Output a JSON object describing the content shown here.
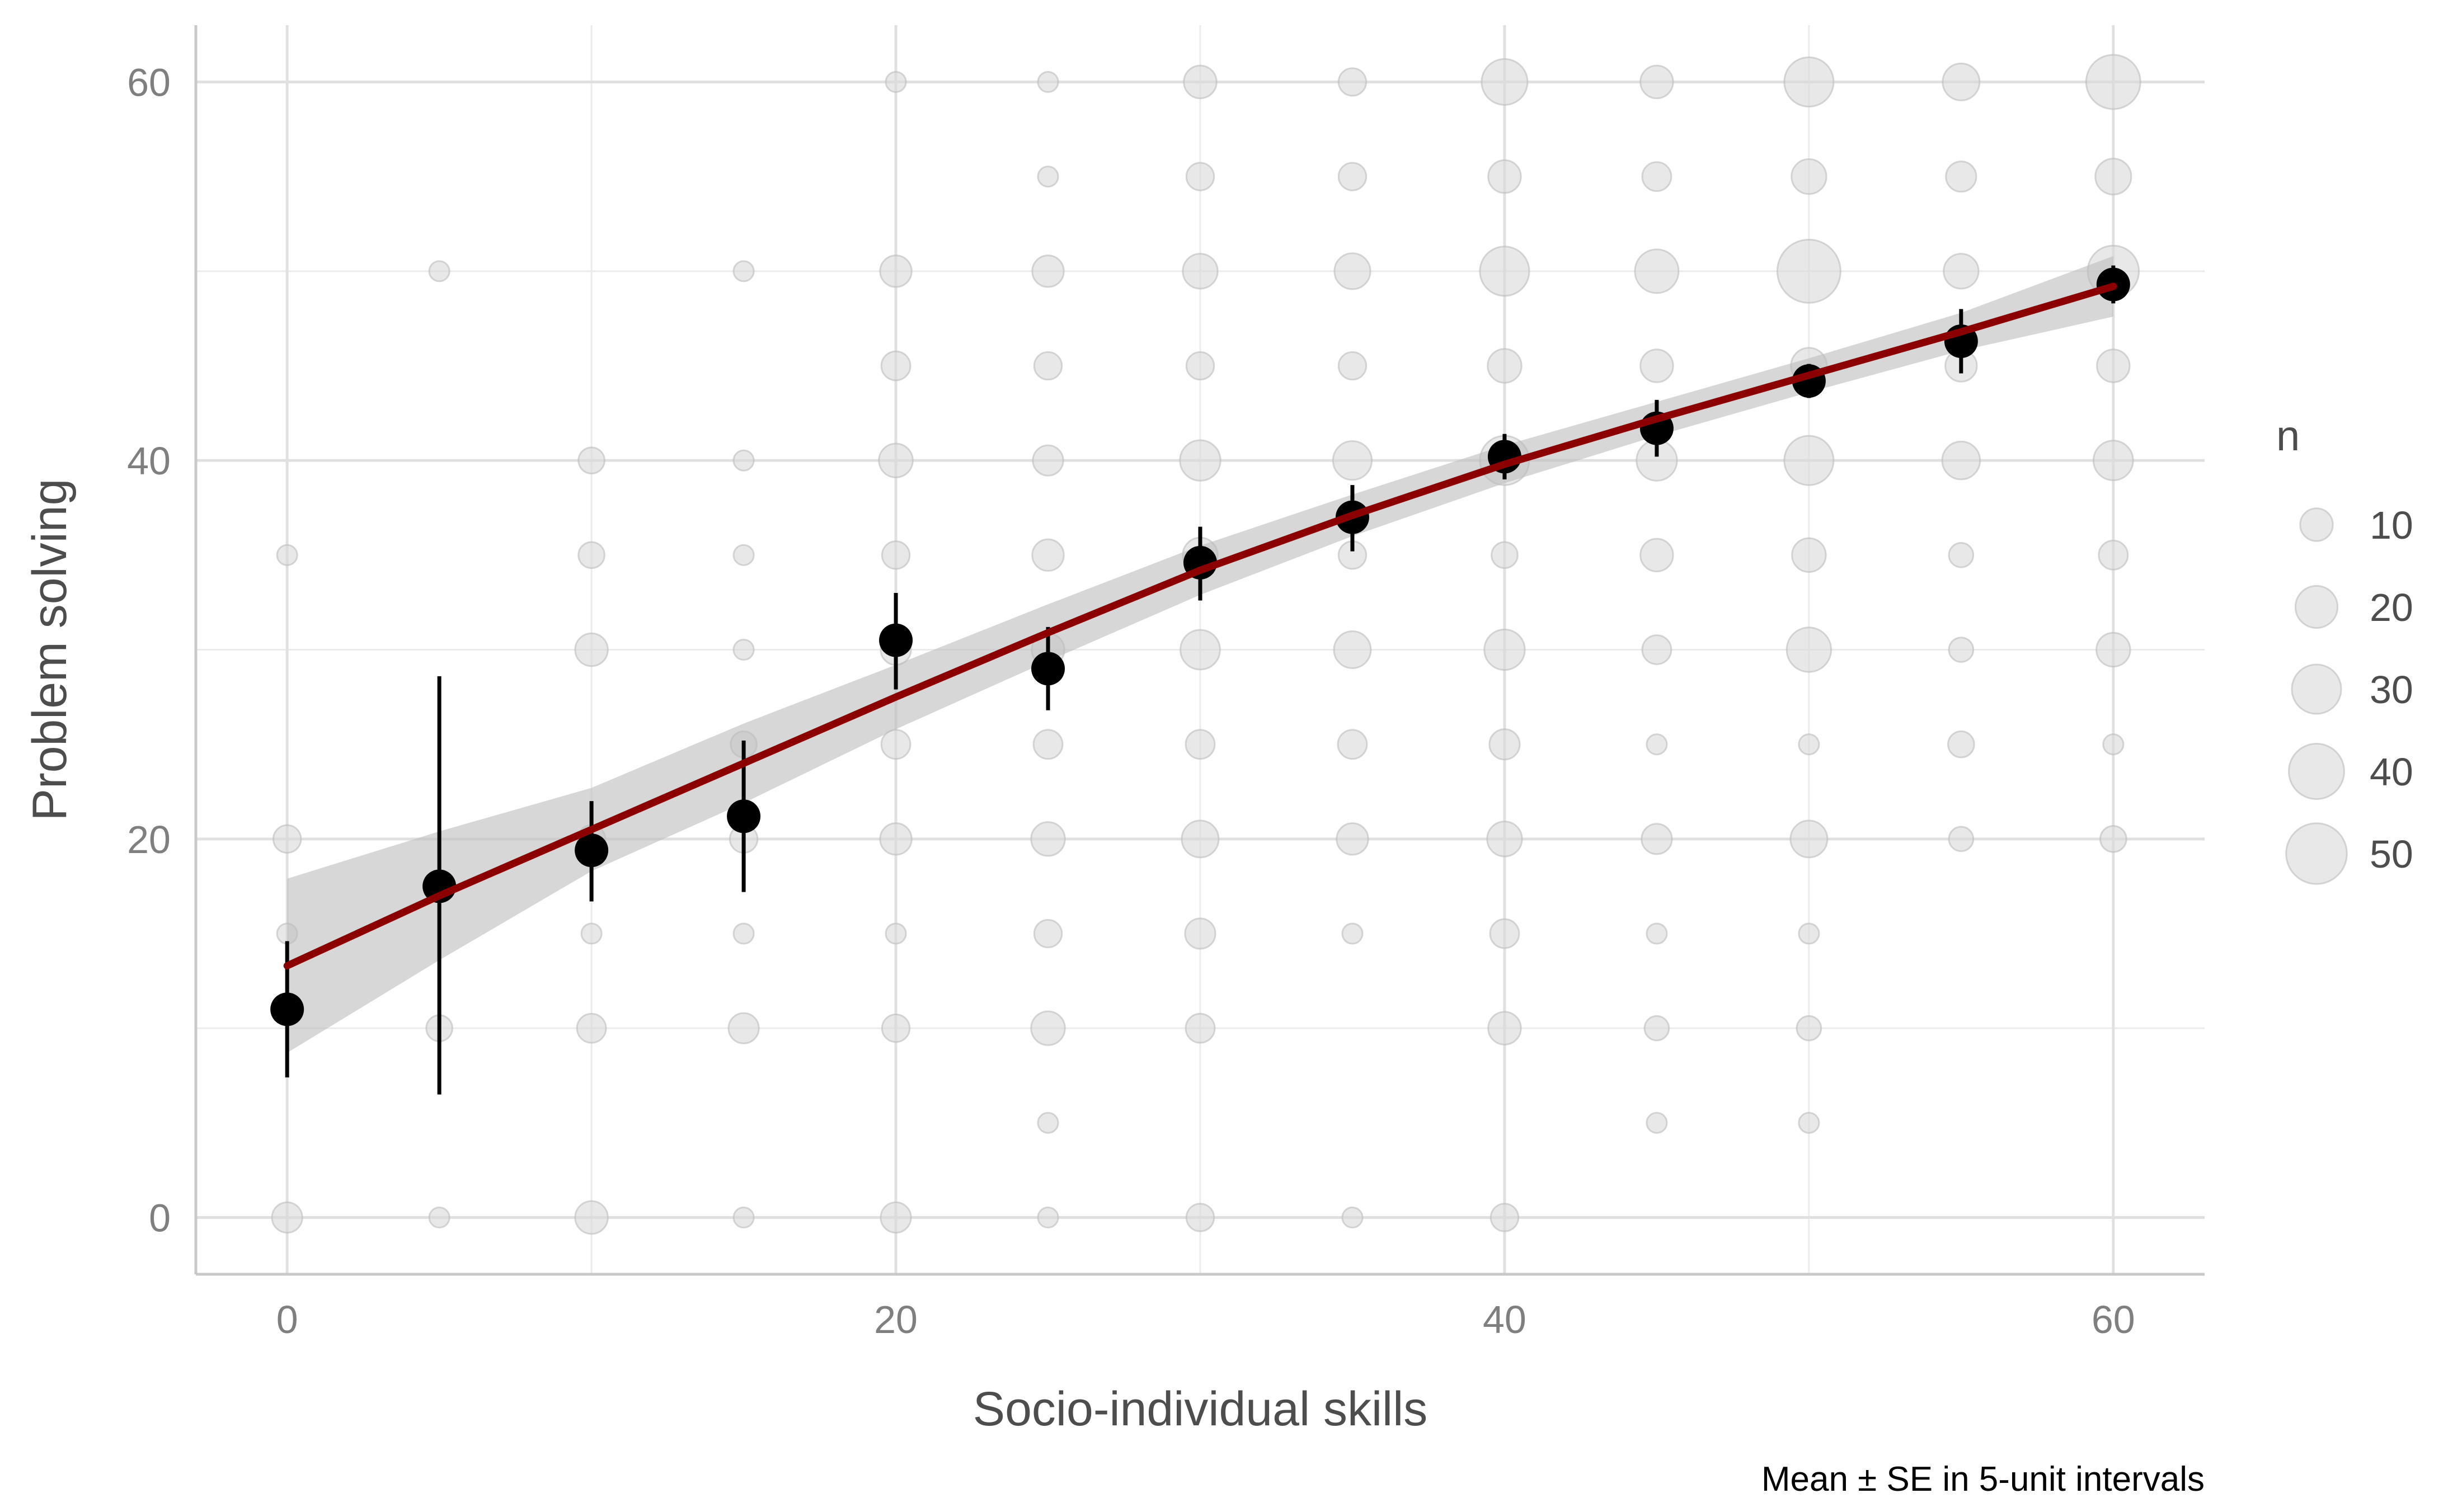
{
  "chart_data": {
    "type": "scatter",
    "xlabel": "Socio-individual skills",
    "ylabel": "Problem solving",
    "caption": "Mean ± SE in 5-unit intervals",
    "xlim": [
      -3,
      63
    ],
    "ylim": [
      -3,
      63
    ],
    "x_ticks": [
      "0",
      "20",
      "40",
      "60"
    ],
    "y_ticks": [
      "0",
      "20",
      "40",
      "60"
    ],
    "grid": true,
    "legend": {
      "title": "n",
      "placement": "right",
      "entries": [
        {
          "label": "10",
          "n": 10
        },
        {
          "label": "20",
          "n": 20
        },
        {
          "label": "30",
          "n": 30
        },
        {
          "label": "40",
          "n": 40
        },
        {
          "label": "50",
          "n": 50
        }
      ]
    },
    "colors": {
      "count_points": "#d9d9d9",
      "count_point_stroke": "#bdbdbd",
      "mean_points": "#000000",
      "fit_line": "#8b0000",
      "confidence_band": "#bdbdbd"
    },
    "count_points": [
      {
        "x": 0,
        "y": 0,
        "n": 8
      },
      {
        "x": 0,
        "y": 15,
        "n": 2
      },
      {
        "x": 0,
        "y": 20,
        "n": 6
      },
      {
        "x": 0,
        "y": 35,
        "n": 2
      },
      {
        "x": 5,
        "y": 0,
        "n": 2
      },
      {
        "x": 5,
        "y": 10,
        "n": 5
      },
      {
        "x": 5,
        "y": 50,
        "n": 2
      },
      {
        "x": 10,
        "y": 0,
        "n": 10
      },
      {
        "x": 10,
        "y": 10,
        "n": 7
      },
      {
        "x": 10,
        "y": 15,
        "n": 2
      },
      {
        "x": 10,
        "y": 20,
        "n": 6
      },
      {
        "x": 10,
        "y": 30,
        "n": 10
      },
      {
        "x": 10,
        "y": 35,
        "n": 5
      },
      {
        "x": 10,
        "y": 40,
        "n": 5
      },
      {
        "x": 15,
        "y": 0,
        "n": 2
      },
      {
        "x": 15,
        "y": 10,
        "n": 8
      },
      {
        "x": 15,
        "y": 15,
        "n": 2
      },
      {
        "x": 15,
        "y": 20,
        "n": 6
      },
      {
        "x": 15,
        "y": 25,
        "n": 5
      },
      {
        "x": 15,
        "y": 30,
        "n": 2
      },
      {
        "x": 15,
        "y": 35,
        "n": 2
      },
      {
        "x": 15,
        "y": 40,
        "n": 2
      },
      {
        "x": 15,
        "y": 50,
        "n": 2
      },
      {
        "x": 20,
        "y": 0,
        "n": 8
      },
      {
        "x": 20,
        "y": 10,
        "n": 6
      },
      {
        "x": 20,
        "y": 15,
        "n": 2
      },
      {
        "x": 20,
        "y": 20,
        "n": 9
      },
      {
        "x": 20,
        "y": 25,
        "n": 7
      },
      {
        "x": 20,
        "y": 30,
        "n": 8
      },
      {
        "x": 20,
        "y": 35,
        "n": 6
      },
      {
        "x": 20,
        "y": 40,
        "n": 11
      },
      {
        "x": 20,
        "y": 45,
        "n": 7
      },
      {
        "x": 20,
        "y": 50,
        "n": 9
      },
      {
        "x": 20,
        "y": 60,
        "n": 2
      },
      {
        "x": 25,
        "y": 0,
        "n": 2
      },
      {
        "x": 25,
        "y": 5,
        "n": 2
      },
      {
        "x": 25,
        "y": 10,
        "n": 11
      },
      {
        "x": 25,
        "y": 15,
        "n": 6
      },
      {
        "x": 25,
        "y": 20,
        "n": 11
      },
      {
        "x": 25,
        "y": 25,
        "n": 7
      },
      {
        "x": 25,
        "y": 30,
        "n": 10
      },
      {
        "x": 25,
        "y": 35,
        "n": 9
      },
      {
        "x": 25,
        "y": 40,
        "n": 8
      },
      {
        "x": 25,
        "y": 45,
        "n": 6
      },
      {
        "x": 25,
        "y": 50,
        "n": 9
      },
      {
        "x": 25,
        "y": 55,
        "n": 2
      },
      {
        "x": 25,
        "y": 60,
        "n": 2
      },
      {
        "x": 30,
        "y": 0,
        "n": 6
      },
      {
        "x": 30,
        "y": 10,
        "n": 7
      },
      {
        "x": 30,
        "y": 15,
        "n": 8
      },
      {
        "x": 30,
        "y": 20,
        "n": 14
      },
      {
        "x": 30,
        "y": 25,
        "n": 7
      },
      {
        "x": 30,
        "y": 30,
        "n": 17
      },
      {
        "x": 30,
        "y": 35,
        "n": 12
      },
      {
        "x": 30,
        "y": 40,
        "n": 18
      },
      {
        "x": 30,
        "y": 45,
        "n": 6
      },
      {
        "x": 30,
        "y": 50,
        "n": 12
      },
      {
        "x": 30,
        "y": 55,
        "n": 6
      },
      {
        "x": 30,
        "y": 60,
        "n": 10
      },
      {
        "x": 35,
        "y": 0,
        "n": 2
      },
      {
        "x": 35,
        "y": 15,
        "n": 2
      },
      {
        "x": 35,
        "y": 20,
        "n": 9
      },
      {
        "x": 35,
        "y": 25,
        "n": 7
      },
      {
        "x": 35,
        "y": 30,
        "n": 14
      },
      {
        "x": 35,
        "y": 35,
        "n": 6
      },
      {
        "x": 35,
        "y": 40,
        "n": 16
      },
      {
        "x": 35,
        "y": 45,
        "n": 6
      },
      {
        "x": 35,
        "y": 50,
        "n": 13
      },
      {
        "x": 35,
        "y": 55,
        "n": 6
      },
      {
        "x": 35,
        "y": 60,
        "n": 6
      },
      {
        "x": 40,
        "y": 0,
        "n": 6
      },
      {
        "x": 40,
        "y": 10,
        "n": 10
      },
      {
        "x": 40,
        "y": 15,
        "n": 7
      },
      {
        "x": 40,
        "y": 20,
        "n": 12
      },
      {
        "x": 40,
        "y": 25,
        "n": 8
      },
      {
        "x": 40,
        "y": 30,
        "n": 18
      },
      {
        "x": 40,
        "y": 35,
        "n": 5
      },
      {
        "x": 40,
        "y": 40,
        "n": 30
      },
      {
        "x": 40,
        "y": 45,
        "n": 11
      },
      {
        "x": 40,
        "y": 50,
        "n": 30
      },
      {
        "x": 40,
        "y": 55,
        "n": 10
      },
      {
        "x": 40,
        "y": 60,
        "n": 25
      },
      {
        "x": 45,
        "y": 5,
        "n": 2
      },
      {
        "x": 45,
        "y": 10,
        "n": 4
      },
      {
        "x": 45,
        "y": 15,
        "n": 2
      },
      {
        "x": 45,
        "y": 20,
        "n": 8
      },
      {
        "x": 45,
        "y": 25,
        "n": 2
      },
      {
        "x": 45,
        "y": 30,
        "n": 7
      },
      {
        "x": 45,
        "y": 35,
        "n": 10
      },
      {
        "x": 45,
        "y": 40,
        "n": 18
      },
      {
        "x": 45,
        "y": 45,
        "n": 10
      },
      {
        "x": 45,
        "y": 50,
        "n": 22
      },
      {
        "x": 45,
        "y": 55,
        "n": 7
      },
      {
        "x": 45,
        "y": 60,
        "n": 10
      },
      {
        "x": 50,
        "y": 5,
        "n": 2
      },
      {
        "x": 50,
        "y": 10,
        "n": 4
      },
      {
        "x": 50,
        "y": 15,
        "n": 2
      },
      {
        "x": 50,
        "y": 20,
        "n": 14
      },
      {
        "x": 50,
        "y": 25,
        "n": 2
      },
      {
        "x": 50,
        "y": 30,
        "n": 23
      },
      {
        "x": 50,
        "y": 35,
        "n": 11
      },
      {
        "x": 50,
        "y": 40,
        "n": 30
      },
      {
        "x": 50,
        "y": 45,
        "n": 13
      },
      {
        "x": 50,
        "y": 50,
        "n": 55
      },
      {
        "x": 50,
        "y": 55,
        "n": 12
      },
      {
        "x": 50,
        "y": 60,
        "n": 30
      },
      {
        "x": 55,
        "y": 20,
        "n": 4
      },
      {
        "x": 55,
        "y": 25,
        "n": 5
      },
      {
        "x": 55,
        "y": 30,
        "n": 4
      },
      {
        "x": 55,
        "y": 35,
        "n": 4
      },
      {
        "x": 55,
        "y": 40,
        "n": 15
      },
      {
        "x": 55,
        "y": 45,
        "n": 9
      },
      {
        "x": 55,
        "y": 50,
        "n": 12
      },
      {
        "x": 55,
        "y": 55,
        "n": 8
      },
      {
        "x": 55,
        "y": 60,
        "n": 14
      },
      {
        "x": 60,
        "y": 20,
        "n": 5
      },
      {
        "x": 60,
        "y": 25,
        "n": 2
      },
      {
        "x": 60,
        "y": 30,
        "n": 11
      },
      {
        "x": 60,
        "y": 35,
        "n": 7
      },
      {
        "x": 60,
        "y": 40,
        "n": 17
      },
      {
        "x": 60,
        "y": 45,
        "n": 10
      },
      {
        "x": 60,
        "y": 50,
        "n": 33
      },
      {
        "x": 60,
        "y": 55,
        "n": 13
      },
      {
        "x": 60,
        "y": 60,
        "n": 38
      }
    ],
    "means": [
      {
        "x": 0,
        "y": 11.0,
        "lo": 7.4,
        "hi": 14.6
      },
      {
        "x": 5,
        "y": 17.5,
        "lo": 6.5,
        "hi": 28.6
      },
      {
        "x": 10,
        "y": 19.4,
        "lo": 16.7,
        "hi": 22.0
      },
      {
        "x": 15,
        "y": 21.2,
        "lo": 17.2,
        "hi": 25.2
      },
      {
        "x": 20,
        "y": 30.5,
        "lo": 27.9,
        "hi": 33.0
      },
      {
        "x": 25,
        "y": 29.0,
        "lo": 26.8,
        "hi": 31.2
      },
      {
        "x": 30,
        "y": 34.6,
        "lo": 32.6,
        "hi": 36.5
      },
      {
        "x": 35,
        "y": 37.0,
        "lo": 35.2,
        "hi": 38.7
      },
      {
        "x": 40,
        "y": 40.2,
        "lo": 39.0,
        "hi": 41.4
      },
      {
        "x": 45,
        "y": 41.7,
        "lo": 40.2,
        "hi": 43.2
      },
      {
        "x": 50,
        "y": 44.2,
        "lo": 43.3,
        "hi": 45.1
      },
      {
        "x": 55,
        "y": 46.3,
        "lo": 44.6,
        "hi": 48.0
      },
      {
        "x": 60,
        "y": 49.3,
        "lo": 48.3,
        "hi": 50.3
      }
    ],
    "fit": {
      "x": [
        0,
        5,
        10,
        15,
        20,
        25,
        30,
        35,
        40,
        45,
        50,
        55,
        60
      ],
      "y": [
        13.3,
        17.0,
        20.5,
        24.0,
        27.5,
        30.9,
        34.2,
        37.1,
        39.8,
        42.2,
        44.5,
        46.8,
        49.2
      ],
      "lo": [
        8.7,
        13.6,
        18.3,
        21.9,
        25.8,
        29.4,
        32.9,
        36.0,
        38.8,
        41.3,
        43.6,
        45.8,
        47.6
      ],
      "hi": [
        17.9,
        20.4,
        22.7,
        26.1,
        29.2,
        32.4,
        35.5,
        38.2,
        40.8,
        43.1,
        45.4,
        47.8,
        50.8
      ]
    }
  }
}
